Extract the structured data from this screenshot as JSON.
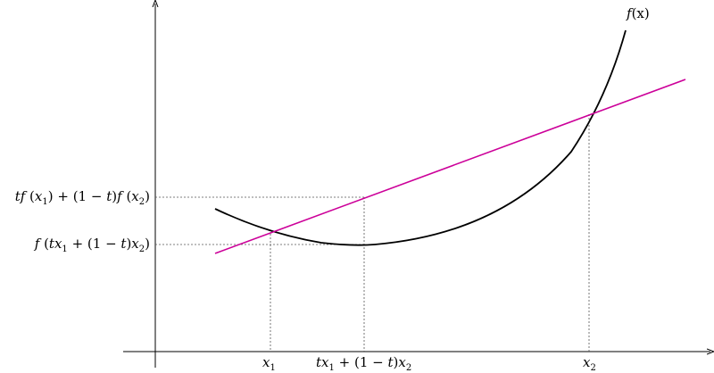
{
  "diagram": {
    "curve_label": {
      "f": "f",
      "arg": "(x)"
    },
    "x_labels": {
      "x1": {
        "var": "x",
        "sub": "1"
      },
      "mix": {
        "t1": "t",
        "x1": "x",
        "sub1": "1",
        "mid": " + (1 − ",
        "t2": "t",
        "paren": ")",
        "x2": "x",
        "sub2": "2"
      },
      "x2": {
        "var": "x",
        "sub": "2"
      }
    },
    "y_labels": {
      "chord": {
        "t": "t",
        "f1": "f",
        "a1": " (",
        "x1": "x",
        "s1": "1",
        "b1": ") + (1 − ",
        "t2": "t",
        "b2": ")",
        "f2": "f",
        "a2": " (",
        "x2": "x",
        "s2": "2",
        "c2": ")"
      },
      "func": {
        "f": "f",
        "a": " (",
        "t": "t",
        "x1": "x",
        "s1": "1",
        "mid": " + (1 − ",
        "t2": "t",
        "b": ")",
        "x2": "x",
        "s2": "2",
        "c": ")"
      }
    },
    "colors": {
      "curve": "#000000",
      "chord": "#cc0099",
      "guide": "#555555",
      "axis": "#000000"
    }
  }
}
